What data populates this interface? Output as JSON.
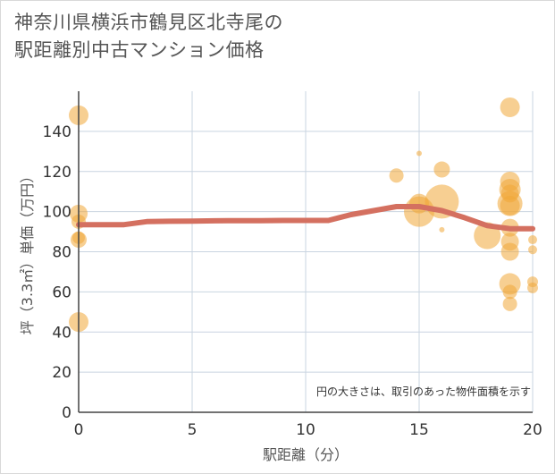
{
  "title_line1": "神奈川県横浜市鶴見区北寺尾の",
  "title_line2": "駅距離別中古マンション価格",
  "chart_data": {
    "type": "scatter",
    "title": "神奈川県横浜市鶴見区北寺尾の駅距離別中古マンション価格",
    "xlabel": "駅距離（分）",
    "ylabel": "坪（3.3㎡）単価（万円）",
    "xlim": [
      0,
      20
    ],
    "ylim": [
      0,
      160
    ],
    "xticks": [
      0,
      5,
      10,
      15,
      20
    ],
    "yticks": [
      0,
      20,
      40,
      60,
      80,
      100,
      120,
      140
    ],
    "note": "円の大きさは、取引のあった物件面積を示す",
    "colors": {
      "points": "#f0a838",
      "trend": "#d47060",
      "grid": "#c9d4e0",
      "axis": "#444444"
    },
    "points": [
      {
        "x": 0,
        "y": 148,
        "s": 11
      },
      {
        "x": 0,
        "y": 99,
        "s": 10
      },
      {
        "x": 0,
        "y": 95,
        "s": 8
      },
      {
        "x": 0,
        "y": 87,
        "s": 7
      },
      {
        "x": 0,
        "y": 86,
        "s": 9
      },
      {
        "x": 0,
        "y": 45,
        "s": 11
      },
      {
        "x": 14,
        "y": 118,
        "s": 8
      },
      {
        "x": 15,
        "y": 129,
        "s": 3
      },
      {
        "x": 15,
        "y": 104,
        "s": 11
      },
      {
        "x": 15,
        "y": 100,
        "s": 17
      },
      {
        "x": 16,
        "y": 121,
        "s": 9
      },
      {
        "x": 16,
        "y": 105,
        "s": 19
      },
      {
        "x": 16,
        "y": 91,
        "s": 3
      },
      {
        "x": 18,
        "y": 88,
        "s": 15
      },
      {
        "x": 19,
        "y": 152,
        "s": 11
      },
      {
        "x": 19,
        "y": 115,
        "s": 11
      },
      {
        "x": 19,
        "y": 111,
        "s": 12
      },
      {
        "x": 19,
        "y": 109,
        "s": 10
      },
      {
        "x": 19,
        "y": 104,
        "s": 14
      },
      {
        "x": 19,
        "y": 103,
        "s": 11
      },
      {
        "x": 19,
        "y": 92,
        "s": 10
      },
      {
        "x": 19,
        "y": 85,
        "s": 10
      },
      {
        "x": 19,
        "y": 80,
        "s": 10
      },
      {
        "x": 19,
        "y": 64,
        "s": 12
      },
      {
        "x": 19,
        "y": 60,
        "s": 8
      },
      {
        "x": 19,
        "y": 54,
        "s": 8
      },
      {
        "x": 20,
        "y": 86,
        "s": 5
      },
      {
        "x": 20,
        "y": 81,
        "s": 5
      },
      {
        "x": 20,
        "y": 65,
        "s": 6
      },
      {
        "x": 20,
        "y": 62,
        "s": 6
      }
    ],
    "trend": {
      "x": [
        0,
        1,
        2,
        3,
        4,
        5,
        6,
        7,
        8,
        9,
        10,
        11,
        12,
        13,
        14,
        15,
        16,
        17,
        18,
        19,
        20
      ],
      "y": [
        93.5,
        93.5,
        93.5,
        95,
        95.2,
        95.3,
        95.4,
        95.5,
        95.5,
        95.6,
        95.6,
        95.6,
        98.5,
        100.5,
        102.5,
        102.5,
        100.5,
        97,
        93,
        91.5,
        91.5
      ]
    }
  }
}
